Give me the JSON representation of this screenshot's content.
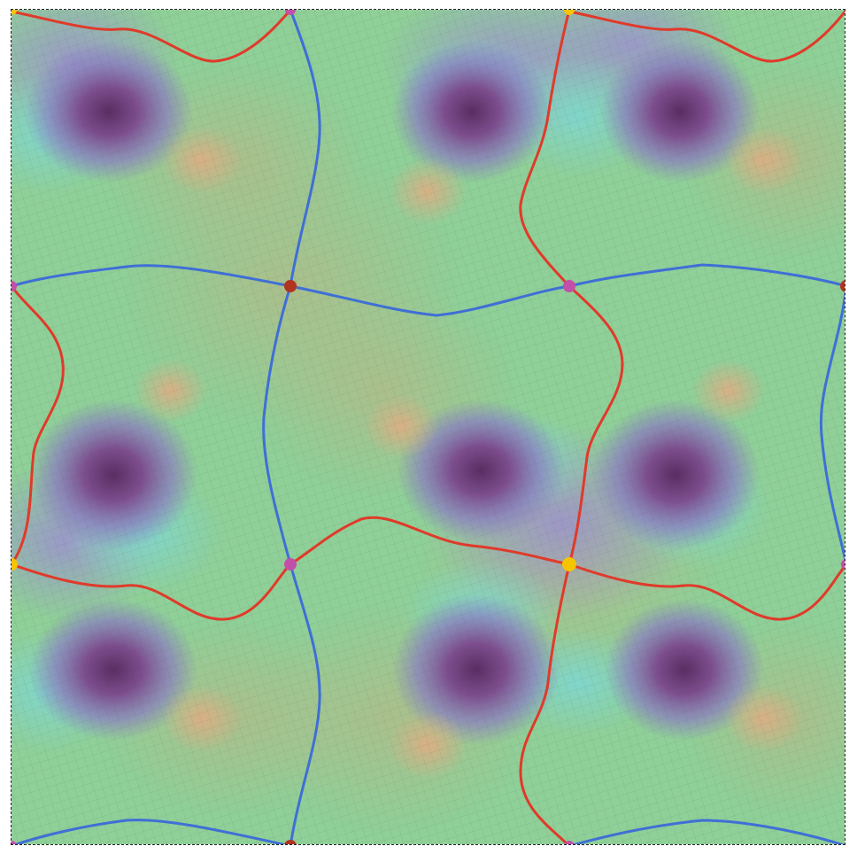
{
  "figure": {
    "kind": "periodic-texture-parameterization",
    "tile_count": "3x3",
    "colors": {
      "background_green": "#8fcf98",
      "olive": "#a7b98a",
      "purple": "#8a7fbf",
      "dark_purple": "#6a3f78",
      "cyan": "#7fd0c9",
      "peach": "#d8b08a",
      "red_seam": "#e03a2a",
      "blue_seam": "#3f6fd6",
      "vertex_brown": "#b0341f",
      "vertex_magenta": "#c24fa8",
      "vertex_yellow": "#f6c400",
      "border": "#222222"
    },
    "vertex_markers": [
      {
        "name": "cone-vertex-brown",
        "color_key": "vertex_brown"
      },
      {
        "name": "cone-vertex-magenta",
        "color_key": "vertex_magenta"
      },
      {
        "name": "cone-vertex-yellow",
        "color_key": "vertex_yellow"
      }
    ],
    "seam_curves": [
      {
        "name": "red-seam",
        "color_key": "red_seam"
      },
      {
        "name": "blue-seam",
        "color_key": "blue_seam"
      }
    ]
  }
}
